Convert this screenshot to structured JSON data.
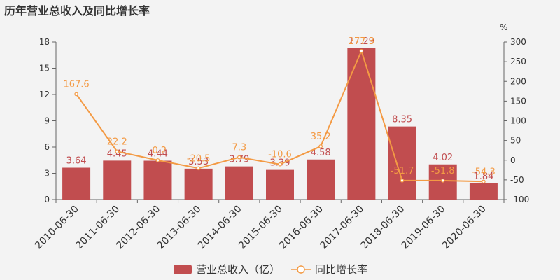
{
  "title": "历年营业总收入及同比增长率",
  "colors": {
    "bar": "#c14d4f",
    "line": "#f39a44",
    "axis": "#666666",
    "bar_label": "#c14d4f",
    "line_label": "#f39a44"
  },
  "legend": {
    "bar_label": "营业总收入（亿）",
    "line_label": "同比增长率"
  },
  "chart_data": {
    "type": "bar",
    "categories": [
      "2010-06-30",
      "2011-06-30",
      "2012-06-30",
      "2013-06-30",
      "2014-06-30",
      "2015-06-30",
      "2016-06-30",
      "2017-06-30",
      "2018-06-30",
      "2019-06-30",
      "2020-06-30"
    ],
    "series": [
      {
        "name": "营业总收入（亿）",
        "type": "bar",
        "axis": "left",
        "values": [
          3.64,
          4.45,
          4.44,
          3.53,
          3.79,
          3.39,
          4.58,
          17.29,
          8.35,
          4.02,
          1.84
        ]
      },
      {
        "name": "同比增长率",
        "type": "line",
        "axis": "right",
        "values": [
          167.6,
          22.2,
          -0.2,
          -20.5,
          7.3,
          -10.6,
          35.2,
          277.3,
          -51.7,
          -51.8,
          -54.3
        ]
      }
    ],
    "y_left": {
      "min": 0,
      "max": 18,
      "ticks": [
        "0",
        "3",
        "6",
        "9",
        "12",
        "15",
        "18"
      ]
    },
    "y_right": {
      "min": -100,
      "max": 300,
      "unit": "%",
      "ticks": [
        "-100",
        "-50",
        "0",
        "50",
        "100",
        "150",
        "200",
        "250",
        "300"
      ]
    },
    "grid": false,
    "legend_position": "bottom"
  }
}
